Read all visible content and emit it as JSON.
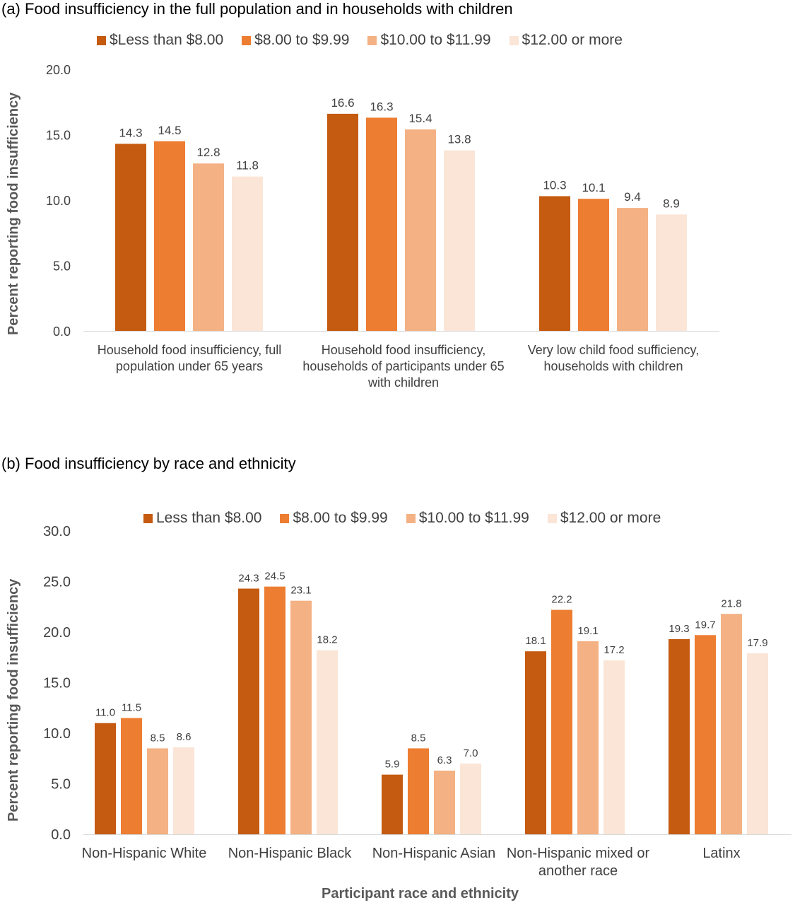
{
  "colors": {
    "series": [
      "#c55a11",
      "#ed7d31",
      "#f4b183",
      "#fbe5d6"
    ],
    "text": "#404040",
    "axis": "#d9d9d9"
  },
  "chart_data": [
    {
      "type": "bar",
      "title": "(a) Food insufficiency in the full population and in households with children",
      "ylabel": "Percent reporting food insufficiency",
      "xlabel": "",
      "ylim": [
        0,
        20
      ],
      "yticks": [
        "0.0",
        "5.0",
        "10.0",
        "15.0",
        "20.0"
      ],
      "legend_position": "top",
      "grid": false,
      "categories": [
        "Household food insufficiency, full population under 65 years",
        "Household food insufficiency, households of participants under 65 with children",
        "Very low child food sufficiency, households with children"
      ],
      "series": [
        {
          "name": "$Less than $8.00",
          "values": [
            14.3,
            16.6,
            10.3
          ],
          "labels": [
            "14.3",
            "16.6",
            "10.3"
          ]
        },
        {
          "name": "$8.00 to $9.99",
          "values": [
            14.5,
            16.3,
            10.1
          ],
          "labels": [
            "14.5",
            "16.3",
            "10.1"
          ]
        },
        {
          "name": "$10.00 to $11.99",
          "values": [
            12.8,
            15.4,
            9.4
          ],
          "labels": [
            "12.8",
            "15.4",
            "9.4"
          ]
        },
        {
          "name": "$12.00 or more",
          "values": [
            11.8,
            13.8,
            8.9
          ],
          "labels": [
            "11.8",
            "13.8",
            "8.9"
          ]
        }
      ]
    },
    {
      "type": "bar",
      "title": "(b) Food insufficiency by race and ethnicity",
      "ylabel": "Percent reporting food insufficiency",
      "xlabel": "Participant race and ethnicity",
      "ylim": [
        0,
        30
      ],
      "yticks": [
        "0.0",
        "5.0",
        "10.0",
        "15.0",
        "20.0",
        "25.0",
        "30.0"
      ],
      "legend_position": "top",
      "grid": false,
      "categories": [
        "Non-Hispanic White",
        "Non-Hispanic Black",
        "Non-Hispanic Asian",
        "Non-Hispanic mixed or another race",
        "Latinx"
      ],
      "series": [
        {
          "name": "Less than $8.00",
          "values": [
            11.0,
            24.3,
            5.9,
            18.1,
            19.3
          ],
          "labels": [
            "11.0",
            "24.3",
            "5.9",
            "18.1",
            "19.3"
          ]
        },
        {
          "name": "$8.00 to $9.99",
          "values": [
            11.5,
            24.5,
            8.5,
            22.2,
            19.7
          ],
          "labels": [
            "11.5",
            "24.5",
            "8.5",
            "22.2",
            "19.7"
          ]
        },
        {
          "name": "$10.00 to $11.99",
          "values": [
            8.5,
            23.1,
            6.3,
            19.1,
            21.8
          ],
          "labels": [
            "8.5",
            "23.1",
            "6.3",
            "19.1",
            "21.8"
          ]
        },
        {
          "name": "$12.00 or more",
          "values": [
            8.6,
            18.2,
            7.0,
            17.2,
            17.9
          ],
          "labels": [
            "8.6",
            "18.2",
            "7.0",
            "17.2",
            "17.9"
          ]
        }
      ]
    }
  ]
}
